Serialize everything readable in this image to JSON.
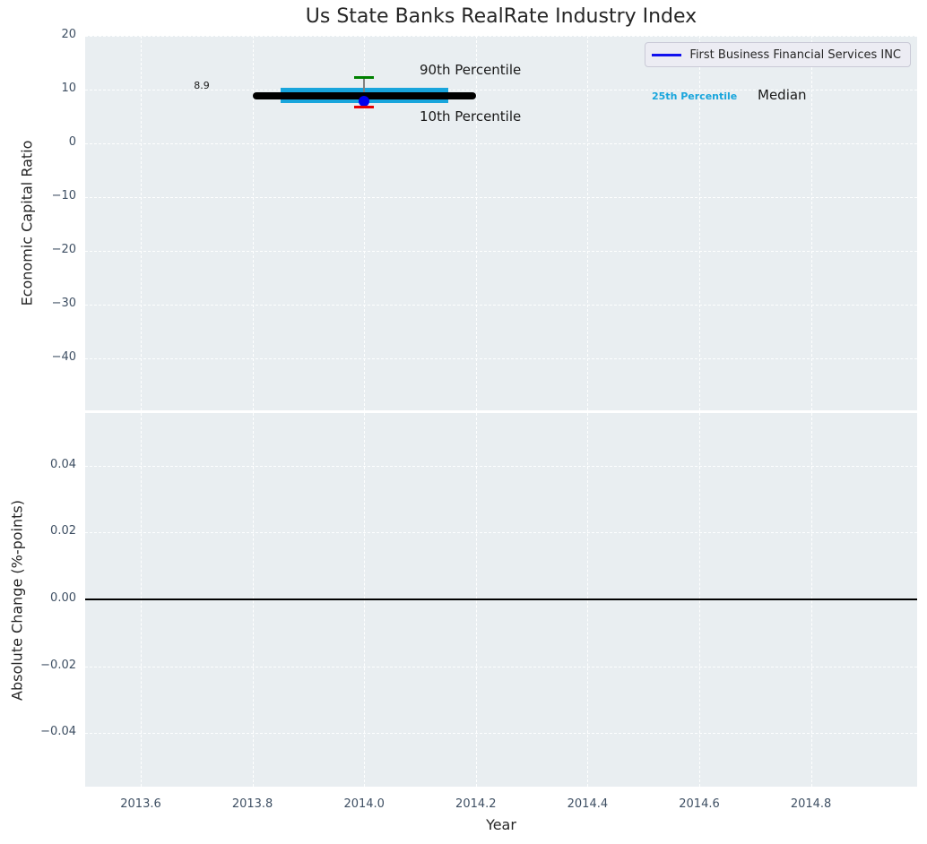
{
  "chart_data": [
    {
      "type": "line",
      "title": "Us State Banks RealRate Industry Index",
      "ylabel": "Economic Capital Ratio",
      "xlabel": "Year",
      "xlim": [
        2013.5,
        2014.99
      ],
      "ylim": [
        -49.7,
        20
      ],
      "grid": true,
      "background_color": "#e9eef1",
      "xticks": {
        "values": [
          2013.6,
          2013.8,
          2014.0,
          2014.2,
          2014.4,
          2014.6,
          2014.8
        ],
        "labels": [
          "2013.6",
          "2013.8",
          "2014.0",
          "2014.2",
          "2014.4",
          "2014.6",
          "2014.8"
        ]
      },
      "yticks": {
        "values": [
          20,
          10,
          0,
          -10,
          -20,
          -30,
          -40
        ],
        "labels": [
          "20",
          "10",
          "0",
          "−10",
          "−20",
          "−30",
          "−40"
        ]
      },
      "series": [
        {
          "name": "Median",
          "style": "median",
          "color": "#000000",
          "x_start": 2013.8,
          "x_end": 2014.2,
          "value": 8.9
        },
        {
          "name": "25th-75th Percentile",
          "style": "band",
          "color": "#18a5dc",
          "x_start": 2013.85,
          "x_end": 2014.15,
          "low": 7.55,
          "high": 10.4
        },
        {
          "name": "90th Percentile",
          "style": "tick_high",
          "color": "#008000",
          "x": 2014.0,
          "value": 12.3
        },
        {
          "name": "10th Percentile",
          "style": "tick_low",
          "color": "#e80000",
          "x": 2014.0,
          "value": 6.8
        },
        {
          "name": "First Business Financial Services INC",
          "style": "point",
          "color": "#0000ee",
          "x": 2014.0,
          "value": 7.8
        }
      ],
      "whisker_color": "#808080",
      "annotations": {
        "median_value": "8.9",
        "p90": "90th Percentile",
        "p10": "10th Percentile",
        "p25": "25th Percentile",
        "median": "Median"
      },
      "legend": {
        "label": "First Business Financial Services INC",
        "color": "#1111ee",
        "position": "upper right"
      }
    },
    {
      "type": "line",
      "ylabel": "Absolute Change (%-points)",
      "xlabel": "Year",
      "xlim": [
        2013.5,
        2014.99
      ],
      "ylim": [
        -0.056,
        0.056
      ],
      "grid": true,
      "yticks": {
        "values": [
          0.04,
          0.02,
          0.0,
          -0.02,
          -0.04
        ],
        "labels": [
          "0.04",
          "0.02",
          "0.00",
          "−0.02",
          "−0.04"
        ]
      },
      "zero_line": 0.0,
      "zero_line_color": "#000000"
    }
  ]
}
